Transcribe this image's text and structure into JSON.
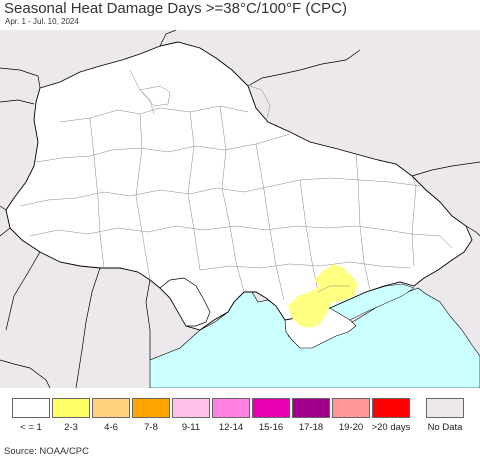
{
  "title": "Seasonal Heat Damage Days >=38°C/100°F (CPC)",
  "subtitle": "Apr. 1 - Jul. 10, 2024",
  "source": "Source: NOAA/CPC",
  "colors": {
    "land_outside": "#ece8ec",
    "land_region": "#ffffff",
    "water": "#ccffff",
    "border": "#000000",
    "highlight_2_3": "#ffff80"
  },
  "legend": [
    {
      "label": "< = 1",
      "color": "#ffffff"
    },
    {
      "label": "2-3",
      "color": "#ffff66"
    },
    {
      "label": "4-6",
      "color": "#ffd27f"
    },
    {
      "label": "7-8",
      "color": "#ffa500"
    },
    {
      "label": "9-11",
      "color": "#ffc0e8"
    },
    {
      "label": "12-14",
      "color": "#ff80e0"
    },
    {
      "label": "15-16",
      "color": "#e600b0"
    },
    {
      "label": "17-18",
      "color": "#a0008c"
    },
    {
      "label": "19-20",
      "color": "#ff9999"
    },
    {
      "label": ">20 days",
      "color": "#ff0000"
    }
  ],
  "no_data": {
    "label": "No Data",
    "color": "#ece8ec"
  }
}
